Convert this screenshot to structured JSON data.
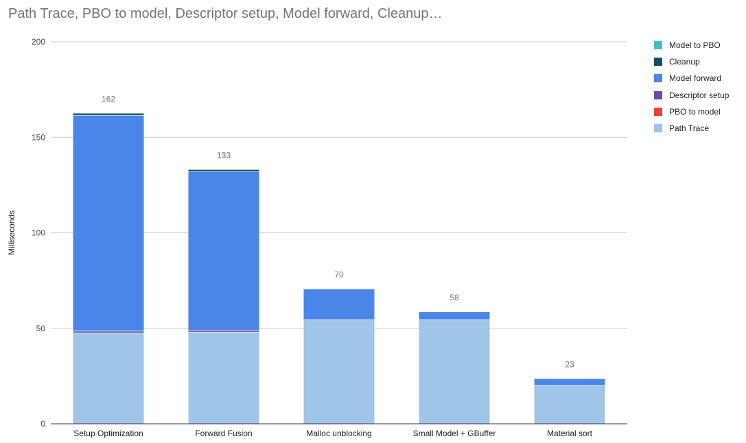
{
  "chart_data": {
    "type": "bar",
    "stacked": true,
    "title": "Path Trace, PBO to model, Descriptor setup, Model forward, Cleanup…",
    "xlabel": "",
    "ylabel": "Milliseconds",
    "ylim": [
      0,
      200
    ],
    "yticks": [
      "0",
      "50",
      "100",
      "150",
      "200"
    ],
    "grid": true,
    "legend_position": "right",
    "categories": [
      "Setup Optimization",
      "Forward Fusion",
      "Malloc unblocking",
      "Small Model + GBuffer",
      "Material sort"
    ],
    "series": [
      {
        "name": "Path Trace",
        "color": "#9fc5e8",
        "values": [
          47.5,
          48,
          54.5,
          54.5,
          20
        ]
      },
      {
        "name": "PBO to model",
        "color": "#ea4335",
        "values": [
          0,
          0,
          0,
          0,
          0
        ]
      },
      {
        "name": "Descriptor setup",
        "color": "#674ea7",
        "values": [
          1,
          1,
          0,
          0,
          0
        ]
      },
      {
        "name": "Model forward",
        "color": "#4a86e8",
        "values": [
          113,
          83,
          16,
          4,
          3.5
        ]
      },
      {
        "name": "Cleanup",
        "color": "#134f5c",
        "values": [
          1,
          1,
          0,
          0,
          0
        ]
      },
      {
        "name": "Model to PBO",
        "color": "#46bdc6",
        "values": [
          0,
          0,
          0,
          0,
          0
        ]
      }
    ],
    "totals": [
      "162",
      "133",
      "70",
      "58",
      "23"
    ],
    "legend_order": [
      "Model to PBO",
      "Cleanup",
      "Model forward",
      "Descriptor setup",
      "PBO to model",
      "Path Trace"
    ]
  }
}
